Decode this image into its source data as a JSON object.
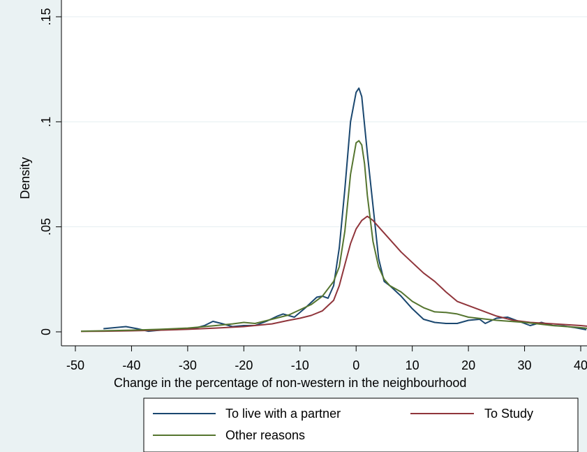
{
  "chart_data": {
    "type": "line",
    "title": "",
    "xlabel": "Change in the percentage of non-western in the neighbourhood",
    "ylabel": "Density",
    "xlim": [
      -50,
      42
    ],
    "ylim": [
      0,
      0.15
    ],
    "x_ticks": [
      -50,
      -40,
      -30,
      -20,
      -10,
      0,
      10,
      20,
      30,
      40
    ],
    "x_tick_labels": [
      "-50",
      "-40",
      "-30",
      "-20",
      "-10",
      "0",
      "10",
      "20",
      "30",
      "40"
    ],
    "y_ticks": [
      0,
      0.05,
      0.1,
      0.15
    ],
    "y_tick_labels": [
      "0",
      ".05",
      ".1",
      ".15"
    ],
    "grid": "horizontal",
    "legend_position": "bottom",
    "series": [
      {
        "name": "To live with a partner",
        "color": "#1a476f",
        "x": [
          -45,
          -43,
          -41,
          -39,
          -37,
          -35,
          -33,
          -31,
          -29,
          -27,
          -25.5,
          -24,
          -22,
          -20,
          -18,
          -16,
          -14,
          -13,
          -11,
          -9,
          -7,
          -6,
          -5,
          -4,
          -3,
          -2,
          -1,
          0,
          0.5,
          1,
          2,
          3,
          4,
          5,
          6,
          8,
          10,
          12,
          14,
          16,
          18,
          20,
          22,
          23,
          25,
          27,
          29,
          31,
          33,
          35,
          37,
          39,
          41
        ],
        "values": [
          0.0015,
          0.002,
          0.0025,
          0.0015,
          0.0003,
          0.0008,
          0.0012,
          0.0012,
          0.0015,
          0.003,
          0.005,
          0.004,
          0.0025,
          0.003,
          0.003,
          0.005,
          0.0075,
          0.0085,
          0.007,
          0.0115,
          0.0165,
          0.017,
          0.016,
          0.022,
          0.04,
          0.068,
          0.1,
          0.114,
          0.116,
          0.112,
          0.085,
          0.06,
          0.035,
          0.024,
          0.022,
          0.017,
          0.011,
          0.006,
          0.0045,
          0.004,
          0.004,
          0.0055,
          0.006,
          0.004,
          0.0065,
          0.007,
          0.005,
          0.003,
          0.0045,
          0.003,
          0.0028,
          0.002,
          0.001
        ]
      },
      {
        "name": "To Study",
        "color": "#90353b",
        "x": [
          -49,
          -45,
          -40,
          -35,
          -30,
          -25,
          -20,
          -15,
          -12,
          -10,
          -8,
          -6,
          -4,
          -3,
          -2,
          -1,
          0,
          1,
          2,
          3,
          4,
          6,
          8,
          10,
          12,
          14,
          16,
          18,
          20,
          22,
          25,
          28,
          31,
          34,
          37,
          40,
          42
        ],
        "values": [
          0.0002,
          0.0003,
          0.0005,
          0.0008,
          0.0012,
          0.0018,
          0.0025,
          0.0038,
          0.0055,
          0.0065,
          0.0078,
          0.01,
          0.015,
          0.022,
          0.032,
          0.042,
          0.049,
          0.053,
          0.055,
          0.053,
          0.05,
          0.044,
          0.038,
          0.033,
          0.028,
          0.024,
          0.019,
          0.0145,
          0.0125,
          0.0105,
          0.0075,
          0.0055,
          0.0045,
          0.004,
          0.0035,
          0.003,
          0.0025
        ]
      },
      {
        "name": "Other reasons",
        "color": "#55752f",
        "x": [
          -49,
          -45,
          -40,
          -35,
          -30,
          -27,
          -25,
          -22,
          -20,
          -18,
          -15,
          -12,
          -10,
          -8,
          -6,
          -4,
          -3,
          -2,
          -1,
          0,
          0.5,
          1,
          1.5,
          2,
          3,
          4,
          5,
          6,
          8,
          10,
          12,
          14,
          16,
          18,
          20,
          25,
          30,
          35,
          40,
          42
        ],
        "values": [
          0.0003,
          0.0005,
          0.0008,
          0.0012,
          0.0018,
          0.0025,
          0.003,
          0.0038,
          0.0045,
          0.004,
          0.006,
          0.008,
          0.0105,
          0.013,
          0.017,
          0.024,
          0.031,
          0.048,
          0.075,
          0.09,
          0.091,
          0.089,
          0.08,
          0.065,
          0.043,
          0.031,
          0.025,
          0.022,
          0.019,
          0.0145,
          0.0115,
          0.0095,
          0.0092,
          0.0085,
          0.007,
          0.0055,
          0.0045,
          0.003,
          0.002,
          0.0015
        ]
      }
    ]
  }
}
